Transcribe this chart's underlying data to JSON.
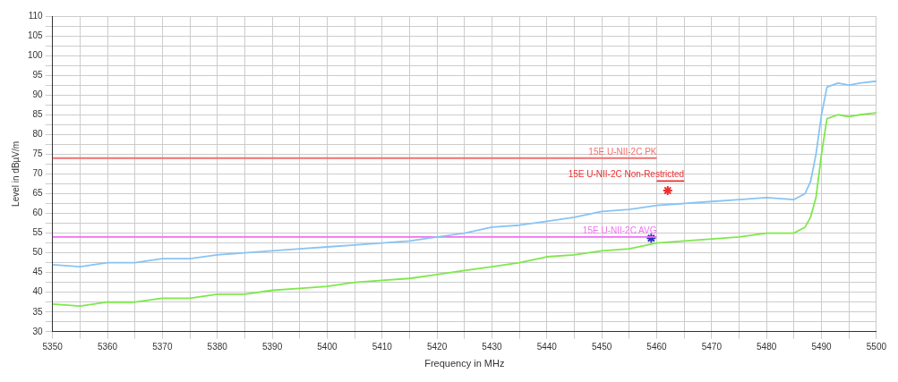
{
  "chart_data": {
    "type": "line",
    "xlabel": "Frequency in MHz",
    "ylabel": "Level in dBµV/m",
    "xlim": [
      5350,
      5500
    ],
    "ylim": [
      30,
      110
    ],
    "xticks": [
      5350,
      {
        "value": 5355,
        "label": null
      },
      5360,
      {
        "value": 5365,
        "label": null
      },
      5370,
      {
        "value": 5375,
        "label": null
      },
      5380,
      {
        "value": 5385,
        "label": null
      },
      5390,
      {
        "value": 5395,
        "label": null
      },
      5400,
      {
        "value": 5405,
        "label": null
      },
      5410,
      {
        "value": 5415,
        "label": null
      },
      5420,
      {
        "value": 5425,
        "label": null
      },
      5430,
      {
        "value": 5435,
        "label": null
      },
      5440,
      {
        "value": 5445,
        "label": null
      },
      5450,
      {
        "value": 5455,
        "label": null
      },
      5460,
      {
        "value": 5465,
        "label": null
      },
      5470,
      {
        "value": 5475,
        "label": null
      },
      5480,
      {
        "value": 5485,
        "label": null
      },
      5490,
      {
        "value": 5495,
        "label": null
      },
      5500
    ],
    "yticks": [
      30,
      {
        "value": 32.5,
        "label": null
      },
      35,
      {
        "value": 37.5,
        "label": null
      },
      40,
      {
        "value": 42.5,
        "label": null
      },
      45,
      {
        "value": 47.5,
        "label": null
      },
      50,
      {
        "value": 52.5,
        "label": null
      },
      55,
      {
        "value": 57.5,
        "label": null
      },
      60,
      {
        "value": 62.5,
        "label": null
      },
      65,
      {
        "value": 67.5,
        "label": null
      },
      70,
      {
        "value": 72.5,
        "label": null
      },
      75,
      {
        "value": 77.5,
        "label": null
      },
      80,
      {
        "value": 82.5,
        "label": null
      },
      85,
      {
        "value": 87.5,
        "label": null
      },
      90,
      {
        "value": 92.5,
        "label": null
      },
      95,
      {
        "value": 97.5,
        "label": null
      },
      100,
      {
        "value": 102.5,
        "label": null
      },
      105,
      {
        "value": 107.5,
        "label": null
      },
      110
    ],
    "grid": true,
    "legend": false,
    "marker": "none",
    "line_style": "solid",
    "series": [
      {
        "color": "#88c4f4",
        "x": [
          5350,
          5355,
          5360,
          5365,
          5370,
          5375,
          5380,
          5385,
          5390,
          5395,
          5400,
          5405,
          5410,
          5415,
          5420,
          5425,
          5430,
          5435,
          5440,
          5445,
          5450,
          5455,
          5460,
          5465,
          5470,
          5475,
          5480,
          5485,
          5487,
          5488,
          5489,
          5490,
          5491,
          5493,
          5495,
          5497,
          5500
        ],
        "values": [
          47,
          46.5,
          47.5,
          47.5,
          48.5,
          48.5,
          49.5,
          50,
          50.5,
          51,
          51.5,
          52,
          52.5,
          53,
          54,
          55,
          56.5,
          57,
          58,
          59,
          60.5,
          61,
          62,
          62.5,
          63,
          63.5,
          64,
          63.5,
          65,
          68,
          75,
          85,
          92,
          93,
          92.5,
          93,
          93.5
        ]
      },
      {
        "color": "#7ee84a",
        "x": [
          5350,
          5355,
          5360,
          5365,
          5370,
          5375,
          5380,
          5385,
          5390,
          5395,
          5400,
          5405,
          5410,
          5415,
          5420,
          5425,
          5430,
          5435,
          5440,
          5445,
          5450,
          5455,
          5460,
          5465,
          5470,
          5475,
          5480,
          5485,
          5487,
          5488,
          5489,
          5490,
          5491,
          5493,
          5495,
          5497,
          5500
        ],
        "values": [
          37,
          36.5,
          37.5,
          37.5,
          38.5,
          38.5,
          39.5,
          39.5,
          40.5,
          41,
          41.5,
          42.5,
          43,
          43.5,
          44.5,
          45.5,
          46.5,
          47.5,
          49,
          49.5,
          50.5,
          51,
          52.5,
          53,
          53.5,
          54,
          55,
          55,
          56.5,
          59,
          64,
          75,
          84,
          85,
          84.5,
          85,
          85.5
        ]
      },
      {
        "name": "15E U-NII-2C PK",
        "color": "#f07070",
        "x": [
          5350,
          5460
        ],
        "values": [
          74,
          74
        ]
      },
      {
        "name": "15E U-NII-2C AVG",
        "color": "#f070f0",
        "x": [
          5350,
          5460
        ],
        "values": [
          54,
          54
        ]
      },
      {
        "name": "15E U-NII-2C Non-Restricted",
        "color": "#e83030",
        "x": [
          5460,
          5465
        ],
        "values": [
          68.2,
          68.2
        ]
      },
      {
        "type": "scatter",
        "color": "#e83030",
        "marker": "cross",
        "x": [
          5462
        ],
        "values": [
          65.8
        ]
      },
      {
        "type": "scatter",
        "color": "#3030c0",
        "marker": "cross",
        "x": [
          5459
        ],
        "values": [
          53.7
        ]
      }
    ]
  }
}
